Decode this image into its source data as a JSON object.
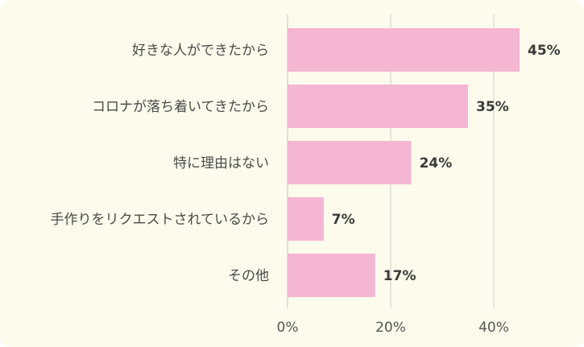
{
  "chart_data": {
    "type": "bar",
    "orientation": "horizontal",
    "categories": [
      "好きな人ができたから",
      "コロナが落ち着いてきたから",
      "特に理由はない",
      "手作りをリクエストされているから",
      "その他"
    ],
    "values": [
      45,
      35,
      24,
      7,
      17
    ],
    "value_labels": [
      "45%",
      "35%",
      "24%",
      "7%",
      "17%"
    ],
    "x_ticks": [
      "0%",
      "20%",
      "40%"
    ],
    "xlim": [
      0,
      55
    ],
    "grid": true,
    "title": "",
    "xlabel": "",
    "ylabel": "",
    "colors": {
      "bar": "#f4b6d2",
      "background": "#fdfbeb",
      "grid": "#d6d6d0"
    }
  }
}
